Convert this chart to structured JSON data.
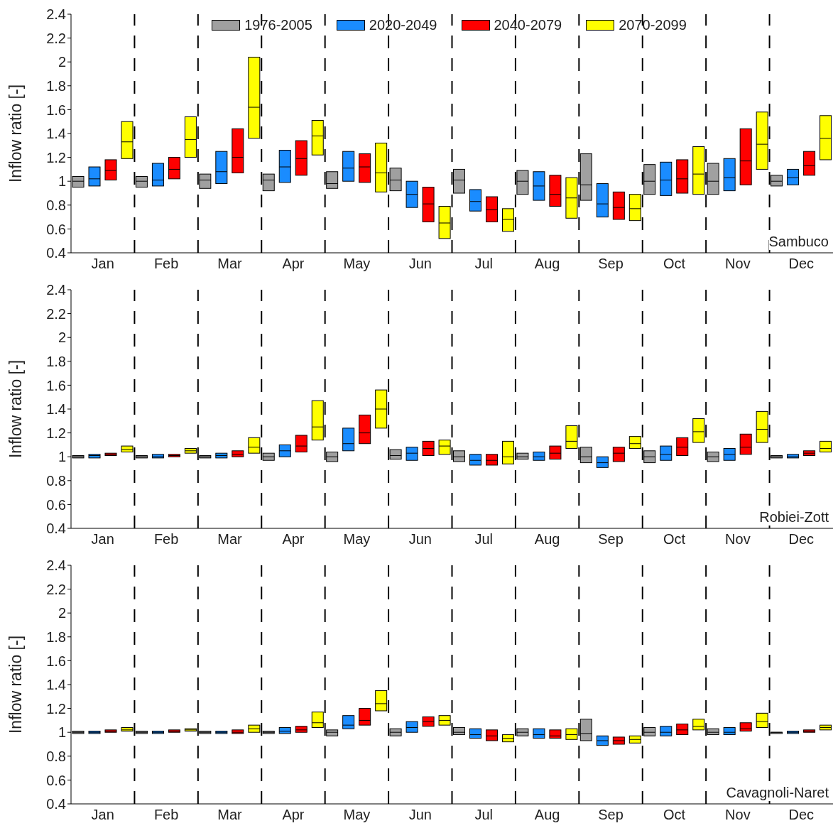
{
  "chart_data": [
    {
      "type": "box",
      "categories": [
        "Jan",
        "Feb",
        "Mar",
        "Apr",
        "May",
        "Jun",
        "Jul",
        "Aug",
        "Sep",
        "Oct",
        "Nov",
        "Dec"
      ],
      "ylabel": "Inflow ratio [-]",
      "ylim": [
        0.4,
        2.4
      ],
      "yticks": [
        0.4,
        0.6,
        0.8,
        1,
        1.2,
        1.4,
        1.6,
        1.8,
        2,
        2.2,
        2.4
      ],
      "grid": "x",
      "legend": "top",
      "annotations": [
        "Sambuco"
      ],
      "series": [
        {
          "name": "1976-2005",
          "color": "#a0a0a0",
          "boxes": [
            {
              "low": 0.95,
              "q1": 0.95,
              "median": 1.0,
              "q3": 1.04,
              "high": 1.04
            },
            {
              "low": 0.95,
              "q1": 0.95,
              "median": 1.0,
              "q3": 1.04,
              "high": 1.04
            },
            {
              "low": 0.94,
              "q1": 0.94,
              "median": 1.01,
              "q3": 1.06,
              "high": 1.06
            },
            {
              "low": 0.92,
              "q1": 0.92,
              "median": 1.01,
              "q3": 1.06,
              "high": 1.06
            },
            {
              "low": 0.94,
              "q1": 0.94,
              "median": 0.98,
              "q3": 1.08,
              "high": 1.08
            },
            {
              "low": 0.92,
              "q1": 0.92,
              "median": 1.01,
              "q3": 1.11,
              "high": 1.11
            },
            {
              "low": 0.9,
              "q1": 0.9,
              "median": 1.01,
              "q3": 1.1,
              "high": 1.1
            },
            {
              "low": 0.89,
              "q1": 0.89,
              "median": 1.0,
              "q3": 1.09,
              "high": 1.09
            },
            {
              "low": 0.84,
              "q1": 0.84,
              "median": 0.97,
              "q3": 1.23,
              "high": 1.23
            },
            {
              "low": 0.89,
              "q1": 0.89,
              "median": 1.0,
              "q3": 1.14,
              "high": 1.14
            },
            {
              "low": 0.89,
              "q1": 0.89,
              "median": 1.0,
              "q3": 1.15,
              "high": 1.15
            },
            {
              "low": 0.96,
              "q1": 0.96,
              "median": 1.0,
              "q3": 1.05,
              "high": 1.05
            }
          ]
        },
        {
          "name": "2020-2049",
          "color": "#1a8cff",
          "boxes": [
            {
              "low": 0.96,
              "q1": 0.96,
              "median": 1.02,
              "q3": 1.12,
              "high": 1.12
            },
            {
              "low": 0.96,
              "q1": 0.96,
              "median": 1.01,
              "q3": 1.15,
              "high": 1.15
            },
            {
              "low": 0.98,
              "q1": 0.98,
              "median": 1.08,
              "q3": 1.25,
              "high": 1.25
            },
            {
              "low": 0.99,
              "q1": 0.99,
              "median": 1.12,
              "q3": 1.26,
              "high": 1.26
            },
            {
              "low": 1.0,
              "q1": 1.0,
              "median": 1.11,
              "q3": 1.25,
              "high": 1.25
            },
            {
              "low": 0.78,
              "q1": 0.78,
              "median": 0.89,
              "q3": 1.0,
              "high": 1.0
            },
            {
              "low": 0.75,
              "q1": 0.75,
              "median": 0.83,
              "q3": 0.93,
              "high": 0.93
            },
            {
              "low": 0.84,
              "q1": 0.84,
              "median": 0.96,
              "q3": 1.08,
              "high": 1.08
            },
            {
              "low": 0.7,
              "q1": 0.7,
              "median": 0.81,
              "q3": 0.98,
              "high": 0.98
            },
            {
              "low": 0.88,
              "q1": 0.88,
              "median": 1.01,
              "q3": 1.16,
              "high": 1.16
            },
            {
              "low": 0.92,
              "q1": 0.92,
              "median": 1.03,
              "q3": 1.19,
              "high": 1.19
            },
            {
              "low": 0.97,
              "q1": 0.97,
              "median": 1.03,
              "q3": 1.1,
              "high": 1.1
            }
          ]
        },
        {
          "name": "2040-2079",
          "color": "#ff0000",
          "boxes": [
            {
              "low": 1.01,
              "q1": 1.01,
              "median": 1.09,
              "q3": 1.18,
              "high": 1.18
            },
            {
              "low": 1.02,
              "q1": 1.02,
              "median": 1.1,
              "q3": 1.2,
              "high": 1.2
            },
            {
              "low": 1.07,
              "q1": 1.07,
              "median": 1.2,
              "q3": 1.44,
              "high": 1.44
            },
            {
              "low": 1.05,
              "q1": 1.05,
              "median": 1.19,
              "q3": 1.34,
              "high": 1.34
            },
            {
              "low": 0.99,
              "q1": 0.99,
              "median": 1.12,
              "q3": 1.23,
              "high": 1.23
            },
            {
              "low": 0.66,
              "q1": 0.66,
              "median": 0.81,
              "q3": 0.95,
              "high": 0.95
            },
            {
              "low": 0.66,
              "q1": 0.66,
              "median": 0.76,
              "q3": 0.87,
              "high": 0.87
            },
            {
              "low": 0.79,
              "q1": 0.79,
              "median": 0.89,
              "q3": 1.05,
              "high": 1.05
            },
            {
              "low": 0.68,
              "q1": 0.68,
              "median": 0.78,
              "q3": 0.91,
              "high": 0.91
            },
            {
              "low": 0.9,
              "q1": 0.9,
              "median": 1.02,
              "q3": 1.18,
              "high": 1.18
            },
            {
              "low": 0.97,
              "q1": 0.97,
              "median": 1.17,
              "q3": 1.44,
              "high": 1.44
            },
            {
              "low": 1.05,
              "q1": 1.05,
              "median": 1.13,
              "q3": 1.25,
              "high": 1.25
            }
          ]
        },
        {
          "name": "2070-2099",
          "color": "#ffff00",
          "boxes": [
            {
              "low": 1.19,
              "q1": 1.19,
              "median": 1.33,
              "q3": 1.5,
              "high": 1.5
            },
            {
              "low": 1.2,
              "q1": 1.2,
              "median": 1.35,
              "q3": 1.54,
              "high": 1.54
            },
            {
              "low": 1.36,
              "q1": 1.36,
              "median": 1.62,
              "q3": 2.04,
              "high": 2.04
            },
            {
              "low": 1.22,
              "q1": 1.22,
              "median": 1.38,
              "q3": 1.51,
              "high": 1.51
            },
            {
              "low": 0.91,
              "q1": 0.91,
              "median": 1.07,
              "q3": 1.32,
              "high": 1.32
            },
            {
              "low": 0.52,
              "q1": 0.52,
              "median": 0.65,
              "q3": 0.79,
              "high": 0.79
            },
            {
              "low": 0.58,
              "q1": 0.58,
              "median": 0.68,
              "q3": 0.77,
              "high": 0.77
            },
            {
              "low": 0.69,
              "q1": 0.69,
              "median": 0.86,
              "q3": 1.03,
              "high": 1.03
            },
            {
              "low": 0.67,
              "q1": 0.67,
              "median": 0.77,
              "q3": 0.89,
              "high": 0.89
            },
            {
              "low": 0.89,
              "q1": 0.89,
              "median": 1.06,
              "q3": 1.29,
              "high": 1.29
            },
            {
              "low": 1.1,
              "q1": 1.1,
              "median": 1.31,
              "q3": 1.58,
              "high": 1.58
            },
            {
              "low": 1.18,
              "q1": 1.18,
              "median": 1.36,
              "q3": 1.55,
              "high": 1.55
            }
          ]
        }
      ]
    },
    {
      "type": "box",
      "categories": [
        "Jan",
        "Feb",
        "Mar",
        "Apr",
        "May",
        "Jun",
        "Jul",
        "Aug",
        "Sep",
        "Oct",
        "Nov",
        "Dec"
      ],
      "ylabel": "Inflow ratio [-]",
      "ylim": [
        0.4,
        2.4
      ],
      "yticks": [
        0.4,
        0.6,
        0.8,
        1,
        1.2,
        1.4,
        1.6,
        1.8,
        2,
        2.2,
        2.4
      ],
      "grid": "x",
      "annotations": [
        "Robiei-Zott"
      ],
      "series": [
        {
          "color": "#a0a0a0",
          "boxes": [
            {
              "low": 0.99,
              "q1": 0.99,
              "median": 1.0,
              "q3": 1.01,
              "high": 1.01
            },
            {
              "low": 0.99,
              "q1": 0.99,
              "median": 1.0,
              "q3": 1.01,
              "high": 1.01
            },
            {
              "low": 0.99,
              "q1": 0.99,
              "median": 1.0,
              "q3": 1.01,
              "high": 1.01
            },
            {
              "low": 0.97,
              "q1": 0.97,
              "median": 1.0,
              "q3": 1.03,
              "high": 1.03
            },
            {
              "low": 0.96,
              "q1": 0.96,
              "median": 1.0,
              "q3": 1.04,
              "high": 1.04
            },
            {
              "low": 0.98,
              "q1": 0.98,
              "median": 1.01,
              "q3": 1.06,
              "high": 1.06
            },
            {
              "low": 0.96,
              "q1": 0.96,
              "median": 1.0,
              "q3": 1.05,
              "high": 1.05
            },
            {
              "low": 0.98,
              "q1": 0.98,
              "median": 1.0,
              "q3": 1.03,
              "high": 1.03
            },
            {
              "low": 0.95,
              "q1": 0.95,
              "median": 1.0,
              "q3": 1.08,
              "high": 1.08
            },
            {
              "low": 0.95,
              "q1": 0.95,
              "median": 1.0,
              "q3": 1.05,
              "high": 1.05
            },
            {
              "low": 0.96,
              "q1": 0.96,
              "median": 1.0,
              "q3": 1.04,
              "high": 1.04
            },
            {
              "low": 0.99,
              "q1": 0.99,
              "median": 1.0,
              "q3": 1.01,
              "high": 1.01
            }
          ]
        },
        {
          "color": "#1a8cff",
          "boxes": [
            {
              "low": 0.99,
              "q1": 0.99,
              "median": 1.01,
              "q3": 1.02,
              "high": 1.02
            },
            {
              "low": 0.99,
              "q1": 0.99,
              "median": 1.0,
              "q3": 1.02,
              "high": 1.02
            },
            {
              "low": 0.99,
              "q1": 0.99,
              "median": 1.01,
              "q3": 1.03,
              "high": 1.03
            },
            {
              "low": 1.0,
              "q1": 1.0,
              "median": 1.05,
              "q3": 1.1,
              "high": 1.1
            },
            {
              "low": 1.05,
              "q1": 1.05,
              "median": 1.11,
              "q3": 1.24,
              "high": 1.24
            },
            {
              "low": 0.97,
              "q1": 0.97,
              "median": 1.03,
              "q3": 1.08,
              "high": 1.08
            },
            {
              "low": 0.93,
              "q1": 0.93,
              "median": 0.97,
              "q3": 1.02,
              "high": 1.02
            },
            {
              "low": 0.97,
              "q1": 0.97,
              "median": 1.0,
              "q3": 1.04,
              "high": 1.04
            },
            {
              "low": 0.91,
              "q1": 0.91,
              "median": 0.95,
              "q3": 1.0,
              "high": 1.0
            },
            {
              "low": 0.97,
              "q1": 0.97,
              "median": 1.02,
              "q3": 1.09,
              "high": 1.09
            },
            {
              "low": 0.97,
              "q1": 0.97,
              "median": 1.02,
              "q3": 1.07,
              "high": 1.07
            },
            {
              "low": 0.99,
              "q1": 0.99,
              "median": 1.0,
              "q3": 1.02,
              "high": 1.02
            }
          ]
        },
        {
          "color": "#ff0000",
          "boxes": [
            {
              "low": 1.01,
              "q1": 1.01,
              "median": 1.02,
              "q3": 1.03,
              "high": 1.03
            },
            {
              "low": 1.0,
              "q1": 1.0,
              "median": 1.01,
              "q3": 1.02,
              "high": 1.02
            },
            {
              "low": 1.0,
              "q1": 1.0,
              "median": 1.02,
              "q3": 1.05,
              "high": 1.05
            },
            {
              "low": 1.04,
              "q1": 1.04,
              "median": 1.09,
              "q3": 1.18,
              "high": 1.18
            },
            {
              "low": 1.11,
              "q1": 1.11,
              "median": 1.2,
              "q3": 1.35,
              "high": 1.35
            },
            {
              "low": 1.01,
              "q1": 1.01,
              "median": 1.07,
              "q3": 1.13,
              "high": 1.13
            },
            {
              "low": 0.93,
              "q1": 0.93,
              "median": 0.97,
              "q3": 1.02,
              "high": 1.02
            },
            {
              "low": 0.98,
              "q1": 0.98,
              "median": 1.03,
              "q3": 1.09,
              "high": 1.09
            },
            {
              "low": 0.96,
              "q1": 0.96,
              "median": 1.03,
              "q3": 1.08,
              "high": 1.08
            },
            {
              "low": 1.01,
              "q1": 1.01,
              "median": 1.08,
              "q3": 1.16,
              "high": 1.16
            },
            {
              "low": 1.02,
              "q1": 1.02,
              "median": 1.08,
              "q3": 1.19,
              "high": 1.19
            },
            {
              "low": 1.01,
              "q1": 1.01,
              "median": 1.03,
              "q3": 1.05,
              "high": 1.05
            }
          ]
        },
        {
          "color": "#ffff00",
          "boxes": [
            {
              "low": 1.04,
              "q1": 1.04,
              "median": 1.06,
              "q3": 1.09,
              "high": 1.09
            },
            {
              "low": 1.03,
              "q1": 1.03,
              "median": 1.05,
              "q3": 1.07,
              "high": 1.07
            },
            {
              "low": 1.03,
              "q1": 1.03,
              "median": 1.08,
              "q3": 1.16,
              "high": 1.16
            },
            {
              "low": 1.14,
              "q1": 1.14,
              "median": 1.25,
              "q3": 1.47,
              "high": 1.47
            },
            {
              "low": 1.24,
              "q1": 1.24,
              "median": 1.4,
              "q3": 1.56,
              "high": 1.56
            },
            {
              "low": 1.02,
              "q1": 1.02,
              "median": 1.09,
              "q3": 1.14,
              "high": 1.14
            },
            {
              "low": 0.94,
              "q1": 0.94,
              "median": 1.0,
              "q3": 1.13,
              "high": 1.13
            },
            {
              "low": 1.07,
              "q1": 1.07,
              "median": 1.13,
              "q3": 1.26,
              "high": 1.26
            },
            {
              "low": 1.07,
              "q1": 1.07,
              "median": 1.11,
              "q3": 1.17,
              "high": 1.17
            },
            {
              "low": 1.12,
              "q1": 1.12,
              "median": 1.21,
              "q3": 1.32,
              "high": 1.32
            },
            {
              "low": 1.12,
              "q1": 1.12,
              "median": 1.23,
              "q3": 1.38,
              "high": 1.38
            },
            {
              "low": 1.04,
              "q1": 1.04,
              "median": 1.07,
              "q3": 1.13,
              "high": 1.13
            }
          ]
        }
      ]
    },
    {
      "type": "box",
      "categories": [
        "Jan",
        "Feb",
        "Mar",
        "Apr",
        "May",
        "Jun",
        "Jul",
        "Aug",
        "Sep",
        "Oct",
        "Nov",
        "Dec"
      ],
      "ylabel": "Inflow ratio [-]",
      "ylim": [
        0.4,
        2.4
      ],
      "yticks": [
        0.4,
        0.6,
        0.8,
        1,
        1.2,
        1.4,
        1.6,
        1.8,
        2,
        2.2,
        2.4
      ],
      "grid": "x",
      "annotations": [
        "Cavagnoli-Naret"
      ],
      "series": [
        {
          "color": "#a0a0a0",
          "boxes": [
            {
              "low": 0.99,
              "q1": 0.99,
              "median": 1.0,
              "q3": 1.01,
              "high": 1.01
            },
            {
              "low": 0.99,
              "q1": 0.99,
              "median": 1.0,
              "q3": 1.01,
              "high": 1.01
            },
            {
              "low": 0.99,
              "q1": 0.99,
              "median": 1.0,
              "q3": 1.01,
              "high": 1.01
            },
            {
              "low": 0.99,
              "q1": 0.99,
              "median": 1.0,
              "q3": 1.01,
              "high": 1.01
            },
            {
              "low": 0.97,
              "q1": 0.97,
              "median": 1.0,
              "q3": 1.02,
              "high": 1.02
            },
            {
              "low": 0.97,
              "q1": 0.97,
              "median": 1.0,
              "q3": 1.03,
              "high": 1.03
            },
            {
              "low": 0.98,
              "q1": 0.98,
              "median": 1.0,
              "q3": 1.04,
              "high": 1.04
            },
            {
              "low": 0.97,
              "q1": 0.97,
              "median": 1.0,
              "q3": 1.03,
              "high": 1.03
            },
            {
              "low": 0.93,
              "q1": 0.93,
              "median": 0.99,
              "q3": 1.11,
              "high": 1.11
            },
            {
              "low": 0.97,
              "q1": 0.97,
              "median": 1.0,
              "q3": 1.04,
              "high": 1.04
            },
            {
              "low": 0.98,
              "q1": 0.98,
              "median": 1.0,
              "q3": 1.03,
              "high": 1.03
            },
            {
              "low": 0.99,
              "q1": 0.99,
              "median": 1.0,
              "q3": 1.0,
              "high": 1.0
            }
          ]
        },
        {
          "color": "#1a8cff",
          "boxes": [
            {
              "low": 0.99,
              "q1": 0.99,
              "median": 1.0,
              "q3": 1.01,
              "high": 1.01
            },
            {
              "low": 0.99,
              "q1": 0.99,
              "median": 1.0,
              "q3": 1.01,
              "high": 1.01
            },
            {
              "low": 0.99,
              "q1": 0.99,
              "median": 1.0,
              "q3": 1.01,
              "high": 1.01
            },
            {
              "low": 0.99,
              "q1": 0.99,
              "median": 1.01,
              "q3": 1.04,
              "high": 1.04
            },
            {
              "low": 1.03,
              "q1": 1.03,
              "median": 1.06,
              "q3": 1.14,
              "high": 1.14
            },
            {
              "low": 1.0,
              "q1": 1.0,
              "median": 1.04,
              "q3": 1.09,
              "high": 1.09
            },
            {
              "low": 0.95,
              "q1": 0.95,
              "median": 0.98,
              "q3": 1.03,
              "high": 1.03
            },
            {
              "low": 0.95,
              "q1": 0.95,
              "median": 0.98,
              "q3": 1.03,
              "high": 1.03
            },
            {
              "low": 0.89,
              "q1": 0.89,
              "median": 0.93,
              "q3": 0.97,
              "high": 0.97
            },
            {
              "low": 0.97,
              "q1": 0.97,
              "median": 1.0,
              "q3": 1.05,
              "high": 1.05
            },
            {
              "low": 0.98,
              "q1": 0.98,
              "median": 1.0,
              "q3": 1.04,
              "high": 1.04
            },
            {
              "low": 0.99,
              "q1": 0.99,
              "median": 1.0,
              "q3": 1.01,
              "high": 1.01
            }
          ]
        },
        {
          "color": "#ff0000",
          "boxes": [
            {
              "low": 1.0,
              "q1": 1.0,
              "median": 1.01,
              "q3": 1.02,
              "high": 1.02
            },
            {
              "low": 1.0,
              "q1": 1.0,
              "median": 1.01,
              "q3": 1.02,
              "high": 1.02
            },
            {
              "low": 0.99,
              "q1": 0.99,
              "median": 1.0,
              "q3": 1.02,
              "high": 1.02
            },
            {
              "low": 1.0,
              "q1": 1.0,
              "median": 1.02,
              "q3": 1.05,
              "high": 1.05
            },
            {
              "low": 1.06,
              "q1": 1.06,
              "median": 1.1,
              "q3": 1.2,
              "high": 1.2
            },
            {
              "low": 1.05,
              "q1": 1.05,
              "median": 1.09,
              "q3": 1.13,
              "high": 1.13
            },
            {
              "low": 0.93,
              "q1": 0.93,
              "median": 0.97,
              "q3": 1.02,
              "high": 1.02
            },
            {
              "low": 0.95,
              "q1": 0.95,
              "median": 0.97,
              "q3": 1.02,
              "high": 1.02
            },
            {
              "low": 0.9,
              "q1": 0.9,
              "median": 0.93,
              "q3": 0.96,
              "high": 0.96
            },
            {
              "low": 0.98,
              "q1": 0.98,
              "median": 1.02,
              "q3": 1.07,
              "high": 1.07
            },
            {
              "low": 1.01,
              "q1": 1.01,
              "median": 1.03,
              "q3": 1.08,
              "high": 1.08
            },
            {
              "low": 1.0,
              "q1": 1.0,
              "median": 1.01,
              "q3": 1.02,
              "high": 1.02
            }
          ]
        },
        {
          "color": "#ffff00",
          "boxes": [
            {
              "low": 1.01,
              "q1": 1.01,
              "median": 1.02,
              "q3": 1.04,
              "high": 1.04
            },
            {
              "low": 1.01,
              "q1": 1.01,
              "median": 1.02,
              "q3": 1.03,
              "high": 1.03
            },
            {
              "low": 1.0,
              "q1": 1.0,
              "median": 1.03,
              "q3": 1.06,
              "high": 1.06
            },
            {
              "low": 1.04,
              "q1": 1.04,
              "median": 1.08,
              "q3": 1.17,
              "high": 1.17
            },
            {
              "low": 1.18,
              "q1": 1.18,
              "median": 1.24,
              "q3": 1.35,
              "high": 1.35
            },
            {
              "low": 1.06,
              "q1": 1.06,
              "median": 1.1,
              "q3": 1.14,
              "high": 1.14
            },
            {
              "low": 0.92,
              "q1": 0.92,
              "median": 0.95,
              "q3": 0.98,
              "high": 0.98
            },
            {
              "low": 0.94,
              "q1": 0.94,
              "median": 0.98,
              "q3": 1.03,
              "high": 1.03
            },
            {
              "low": 0.91,
              "q1": 0.91,
              "median": 0.94,
              "q3": 0.97,
              "high": 0.97
            },
            {
              "low": 1.02,
              "q1": 1.02,
              "median": 1.05,
              "q3": 1.11,
              "high": 1.11
            },
            {
              "low": 1.04,
              "q1": 1.04,
              "median": 1.09,
              "q3": 1.16,
              "high": 1.16
            },
            {
              "low": 1.02,
              "q1": 1.02,
              "median": 1.04,
              "q3": 1.06,
              "high": 1.06
            }
          ]
        }
      ]
    }
  ]
}
